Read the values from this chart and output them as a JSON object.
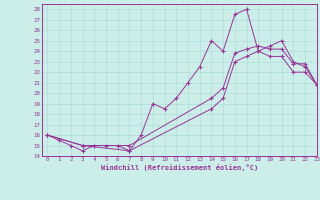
{
  "xlabel": "Windchill (Refroidissement éolien,°C)",
  "background_color": "#cceee8",
  "grid_color": "#b0ddd8",
  "line_color": "#993399",
  "x_series1": [
    0,
    1,
    2,
    3,
    4,
    5,
    6,
    7,
    8,
    9,
    10,
    11,
    12,
    13,
    14,
    15,
    16,
    17,
    18,
    19,
    20,
    21,
    22,
    23
  ],
  "y_series1": [
    16.0,
    15.5,
    15.0,
    14.5,
    15.0,
    15.0,
    15.0,
    14.5,
    16.0,
    19.0,
    18.5,
    19.5,
    21.0,
    22.5,
    25.0,
    24.0,
    27.5,
    28.0,
    24.0,
    24.5,
    25.0,
    23.0,
    22.5,
    20.8
  ],
  "x_series2": [
    0,
    3,
    7,
    14,
    15,
    16,
    17,
    18,
    19,
    20,
    21,
    22,
    23
  ],
  "y_series2": [
    16.0,
    15.0,
    15.0,
    19.5,
    20.5,
    23.8,
    24.2,
    24.5,
    24.2,
    24.2,
    22.8,
    22.8,
    20.8
  ],
  "x_series3": [
    0,
    3,
    7,
    14,
    15,
    16,
    17,
    18,
    19,
    20,
    21,
    22,
    23
  ],
  "y_series3": [
    16.0,
    15.0,
    14.5,
    18.5,
    19.5,
    23.0,
    23.5,
    24.0,
    23.5,
    23.5,
    22.0,
    22.0,
    20.8
  ],
  "xlim": [
    -0.5,
    23
  ],
  "ylim": [
    14,
    28.5
  ],
  "yticks": [
    14,
    15,
    16,
    17,
    18,
    19,
    20,
    21,
    22,
    23,
    24,
    25,
    26,
    27,
    28
  ],
  "xticks": [
    0,
    1,
    2,
    3,
    4,
    5,
    6,
    7,
    8,
    9,
    10,
    11,
    12,
    13,
    14,
    15,
    16,
    17,
    18,
    19,
    20,
    21,
    22,
    23
  ]
}
